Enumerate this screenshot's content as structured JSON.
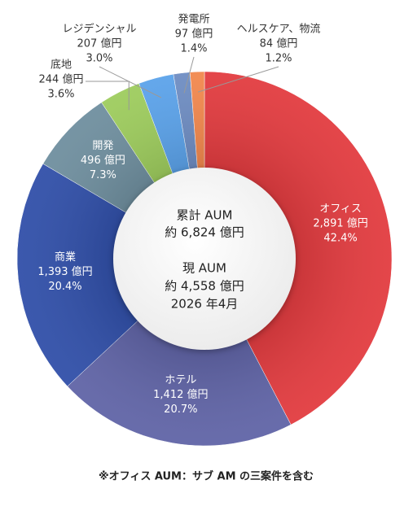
{
  "chart_data": {
    "type": "donut",
    "categories": [
      "オフィス",
      "ホテル",
      "商業",
      "開発",
      "底地",
      "レジデンシャル",
      "発電所",
      "ヘルスケア、物流"
    ],
    "values": [
      2891,
      1412,
      1393,
      496,
      244,
      207,
      97,
      84
    ],
    "value_labels": [
      "2,891 億円",
      "1,412 億円",
      "1,393 億円",
      "496 億円",
      "244 億円",
      "207 億円",
      "97 億円",
      "84 億円"
    ],
    "percents": [
      42.4,
      20.7,
      20.4,
      7.3,
      3.6,
      3.0,
      1.4,
      1.2
    ],
    "percent_labels": [
      "42.4%",
      "20.7%",
      "20.4%",
      "7.3%",
      "3.6%",
      "3.0%",
      "1.4%",
      "1.2%"
    ],
    "colors": [
      "#e23a3e",
      "#5f63a6",
      "#2f4ea8",
      "#6e8e9e",
      "#9dcc5c",
      "#5aa2ea",
      "#6d8cc2",
      "#f2874c"
    ],
    "center_text": [
      "累計 AUM",
      "約 6,824 億円",
      "現 AUM",
      "約 4,558 億円",
      "2026 年4月"
    ],
    "footnote": "※オフィス AUM：サブ AM の三案件を含む"
  }
}
